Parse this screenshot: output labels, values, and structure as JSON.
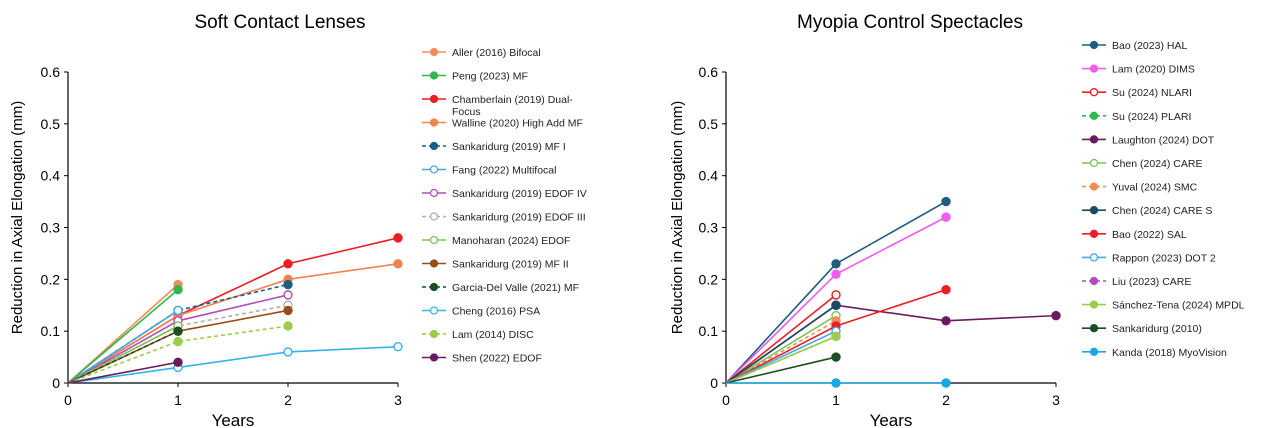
{
  "chart_data": [
    {
      "type": "line",
      "title": "Soft Contact Lenses",
      "xlabel": "Years",
      "ylabel": "Reduction in Axial Elongation (mm)",
      "xlim": [
        0,
        3
      ],
      "ylim": [
        0,
        0.6
      ],
      "xticks": [
        "0",
        "1",
        "2",
        "3"
      ],
      "yticks": [
        "0",
        "0.1",
        "0.2",
        "0.3",
        "0.4",
        "0.5",
        "0.6"
      ],
      "grid": false,
      "legend": "right",
      "series": [
        {
          "name": "Aller (2016) Bifocal",
          "color": "#f28e5b",
          "dash": false,
          "hollow": false,
          "x": [
            0,
            1
          ],
          "y": [
            0,
            0.19
          ]
        },
        {
          "name": "Peng (2023) MF",
          "color": "#2db84a",
          "dash": false,
          "hollow": false,
          "x": [
            0,
            1
          ],
          "y": [
            0,
            0.18
          ]
        },
        {
          "name": "Chamberlain (2019) Dual-Focus",
          "color": "#ee1c24",
          "dash": false,
          "hollow": false,
          "x": [
            0,
            1,
            2,
            3
          ],
          "y": [
            0,
            0.13,
            0.23,
            0.28
          ]
        },
        {
          "name": "Walline (2020) High Add MF",
          "color": "#ef8351",
          "dash": false,
          "hollow": false,
          "x": [
            0,
            1,
            2,
            3
          ],
          "y": [
            0,
            0.13,
            0.2,
            0.23
          ]
        },
        {
          "name": "Sankaridurg (2019) MF I",
          "color": "#1f5d80",
          "dash": true,
          "hollow": false,
          "x": [
            0,
            1,
            2
          ],
          "y": [
            0,
            0.14,
            0.19
          ]
        },
        {
          "name": "Fang (2022) Multifocal",
          "color": "#3fa9e0",
          "dash": false,
          "hollow": true,
          "x": [
            0,
            1
          ],
          "y": [
            0,
            0.14
          ]
        },
        {
          "name": "Sankaridurg (2019) EDOF IV",
          "color": "#b04dbb",
          "dash": false,
          "hollow": true,
          "x": [
            0,
            1,
            2
          ],
          "y": [
            0,
            0.12,
            0.17
          ]
        },
        {
          "name": "Sankaridurg (2019) EDOF III",
          "color": "#b0b0b0",
          "dash": true,
          "hollow": true,
          "x": [
            0,
            1,
            2
          ],
          "y": [
            0,
            0.11,
            0.15
          ]
        },
        {
          "name": "Manoharan (2024) EDOF",
          "color": "#7dc35b",
          "dash": false,
          "hollow": true,
          "x": [
            0,
            1
          ],
          "y": [
            0,
            0.11
          ]
        },
        {
          "name": "Sankaridurg (2019) MF II",
          "color": "#9c4a1a",
          "dash": false,
          "hollow": false,
          "x": [
            0,
            1,
            2
          ],
          "y": [
            0,
            0.1,
            0.14
          ]
        },
        {
          "name": "Garcia-Del Valle (2021) MF",
          "color": "#1d4d22",
          "dash": true,
          "hollow": false,
          "x": [
            0,
            1
          ],
          "y": [
            0,
            0.1
          ]
        },
        {
          "name": "Cheng (2016) PSA",
          "color": "#33b4e5",
          "dash": false,
          "hollow": true,
          "x": [
            0,
            1,
            2,
            3
          ],
          "y": [
            0,
            0.03,
            0.06,
            0.07
          ]
        },
        {
          "name": "Lam (2014) DISC",
          "color": "#9acd4a",
          "dash": true,
          "hollow": false,
          "x": [
            0,
            1,
            2
          ],
          "y": [
            0,
            0.08,
            0.11
          ]
        },
        {
          "name": "Shen (2022) EDOF",
          "color": "#6a1b5e",
          "dash": false,
          "hollow": false,
          "x": [
            0,
            1
          ],
          "y": [
            0,
            0.04
          ]
        }
      ]
    },
    {
      "type": "line",
      "title": "Myopia Control Spectacles",
      "xlabel": "Years",
      "ylabel": "Reduction in Axial Elongation (mm)",
      "xlim": [
        0,
        3
      ],
      "ylim": [
        0,
        0.6
      ],
      "xticks": [
        "0",
        "1",
        "2",
        "3"
      ],
      "yticks": [
        "0",
        "0.1",
        "0.2",
        "0.3",
        "0.4",
        "0.5",
        "0.6"
      ],
      "grid": false,
      "legend": "right",
      "series": [
        {
          "name": "Bao (2023) HAL",
          "color": "#1f5d80",
          "dash": false,
          "hollow": false,
          "x": [
            0,
            1,
            2
          ],
          "y": [
            0,
            0.23,
            0.35
          ]
        },
        {
          "name": "Lam (2020) DIMS",
          "color": "#f25cf0",
          "dash": false,
          "hollow": false,
          "x": [
            0,
            1,
            2
          ],
          "y": [
            0,
            0.21,
            0.32
          ]
        },
        {
          "name": "Su (2024) NLARI",
          "color": "#ee1c24",
          "dash": false,
          "hollow": true,
          "x": [
            0,
            1
          ],
          "y": [
            0,
            0.17
          ]
        },
        {
          "name": "Su (2024) PLARI",
          "color": "#2db84a",
          "dash": true,
          "hollow": false,
          "x": [
            0,
            1
          ],
          "y": [
            0,
            0.15
          ]
        },
        {
          "name": "Laughton (2024) DOT",
          "color": "#6a1b5e",
          "dash": false,
          "hollow": false,
          "x": [
            0,
            1,
            2,
            3
          ],
          "y": [
            0,
            0.15,
            0.12,
            0.13
          ]
        },
        {
          "name": "Chen (2024) CARE",
          "color": "#7dc35b",
          "dash": false,
          "hollow": true,
          "x": [
            0,
            1
          ],
          "y": [
            0,
            0.13
          ]
        },
        {
          "name": "Yuval (2024) SMC",
          "color": "#f28e5b",
          "dash": true,
          "hollow": false,
          "x": [
            0,
            1
          ],
          "y": [
            0,
            0.12
          ]
        },
        {
          "name": "Chen (2024) CARE S",
          "color": "#1a4a66",
          "dash": false,
          "hollow": false,
          "x": [
            0,
            1
          ],
          "y": [
            0,
            0.15
          ]
        },
        {
          "name": "Bao (2022) SAL",
          "color": "#ee1c24",
          "dash": false,
          "hollow": false,
          "x": [
            0,
            1,
            2
          ],
          "y": [
            0,
            0.11,
            0.18
          ]
        },
        {
          "name": "Rappon (2023) DOT 2",
          "color": "#3fa9e0",
          "dash": false,
          "hollow": true,
          "x": [
            0,
            1
          ],
          "y": [
            0,
            0.1
          ]
        },
        {
          "name": "Liu (2023) CARE",
          "color": "#b04dbb",
          "dash": true,
          "hollow": false,
          "x": [
            0,
            1
          ],
          "y": [
            0,
            0.09
          ]
        },
        {
          "name": "Sánchez-Tena (2024) MPDL",
          "color": "#9acd4a",
          "dash": false,
          "hollow": false,
          "x": [
            0,
            1
          ],
          "y": [
            0,
            0.09
          ]
        },
        {
          "name": "Sankaridurg (2010)",
          "color": "#1d4d22",
          "dash": false,
          "hollow": false,
          "x": [
            0,
            1
          ],
          "y": [
            0,
            0.05
          ]
        },
        {
          "name": "Kanda (2018) MyoVision",
          "color": "#1aa7e8",
          "dash": false,
          "hollow": false,
          "x": [
            0,
            1,
            2
          ],
          "y": [
            0,
            0,
            0
          ]
        }
      ]
    }
  ]
}
